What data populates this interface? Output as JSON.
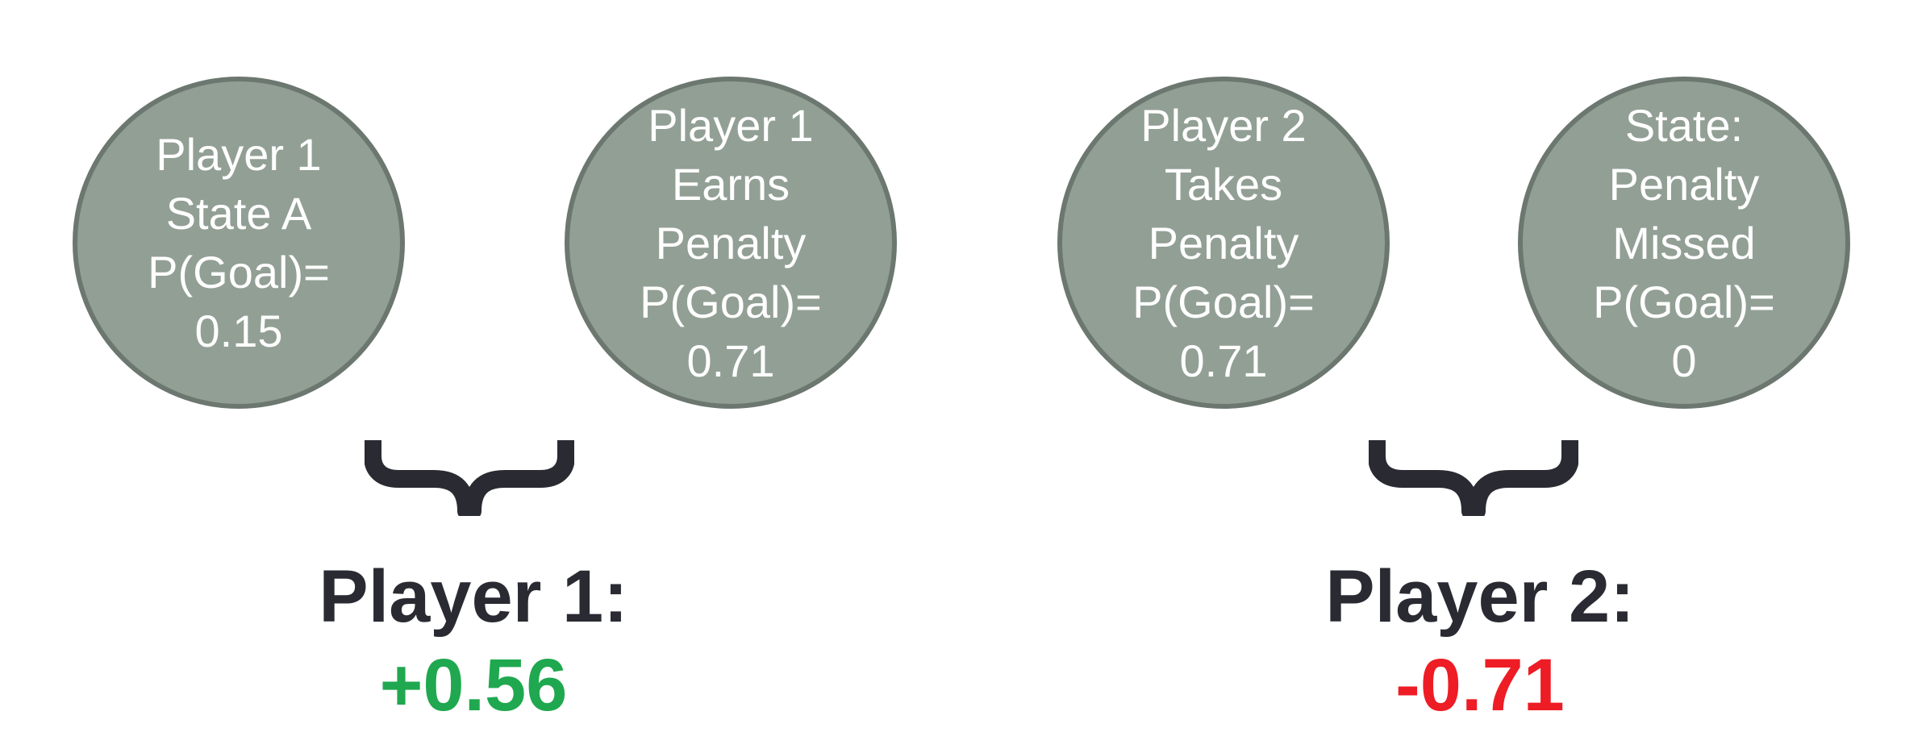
{
  "nodes": [
    {
      "lines": [
        "Player 1",
        "State A",
        "P(Goal)=",
        "0.15"
      ]
    },
    {
      "lines": [
        "Player 1",
        "Earns",
        "Penalty",
        "P(Goal)=",
        "0.71"
      ]
    },
    {
      "lines": [
        "Player 2",
        "Takes",
        "Penalty",
        "P(Goal)=",
        "0.71"
      ]
    },
    {
      "lines": [
        "State:",
        "Penalty",
        "Missed",
        "P(Goal)=",
        "0"
      ]
    }
  ],
  "results": [
    {
      "label": "Player 1:",
      "value": "+0.56",
      "color": "#1fa84f"
    },
    {
      "label": "Player 2:",
      "value": "-0.71",
      "color": "#ee1c25"
    }
  ],
  "colors": {
    "node_fill": "#929f95",
    "node_border": "#6b776f",
    "brace": "#2a2a33"
  }
}
